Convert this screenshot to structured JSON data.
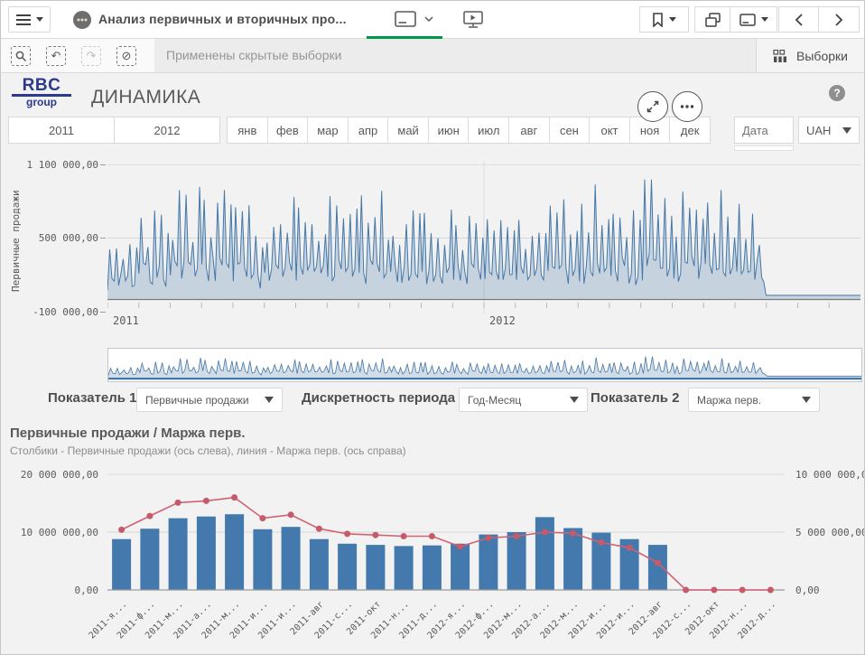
{
  "navbar": {
    "app_title": "Анализ первичных и вторичных про..."
  },
  "toolbar": {
    "status_text": "Применены скрытые выборки",
    "selections_label": "Выборки"
  },
  "header": {
    "logo_top": "RBC",
    "logo_bottom": "group",
    "title": "ДИНАМИКА",
    "help_glyph": "?"
  },
  "filters": {
    "years": [
      "2011",
      "2012"
    ],
    "months": [
      "янв",
      "фев",
      "мар",
      "апр",
      "май",
      "июн",
      "июл",
      "авг",
      "сен",
      "окт",
      "ноя",
      "дек"
    ],
    "date_label": "Дата",
    "currency": "UAH"
  },
  "controls": {
    "indicator1_label": "Показатель 1",
    "indicator1_value": "Первичные продажи",
    "period_label": "Дискретность периода",
    "period_value": "Год-Месяц",
    "indicator2_label": "Показатель 2",
    "indicator2_value": "Маржа перв."
  },
  "combo_header": {
    "title": "Первичные продажи / Маржа перв.",
    "subtitle": "Столбики - Первичные продажи (ось слева), линия - Маржа перв. (ось справа)"
  },
  "chart_data": [
    {
      "id": "primary-sales-daily",
      "type": "area",
      "ylabel": "Первичные продажи",
      "yticks": [
        "1 100 000,00",
        "500 000,00",
        "-100 000,00"
      ],
      "ylim": [
        -100000,
        1100000
      ],
      "xticks": [
        "2011",
        "2012"
      ],
      "x_months": 24,
      "grid": true,
      "note": "daily primary sales Jan 2011 - Dec 2012; activity stops near end of Sep 2012, flat near zero afterwards",
      "monthly_peaks": [
        480000,
        820000,
        930000,
        990000,
        830000,
        870000,
        820000,
        860000,
        900000,
        820000,
        860000,
        760000,
        780000,
        700000,
        880000,
        950000,
        1000000,
        1050000,
        980000,
        920000,
        860000,
        0,
        0,
        0
      ],
      "base_value": 130000,
      "flat_after_month": 20.9,
      "flat_value": 30000,
      "series_color": "#4577a7",
      "fill_color": "rgba(69,119,167,0.25)"
    },
    {
      "id": "navigator-mini",
      "type": "area",
      "role": "range navigator of primary-sales-daily (full range selected, blue slider line at bottom)",
      "slider_color": "#4477aa"
    },
    {
      "id": "combo-monthly",
      "type": "combo",
      "title": "Первичные продажи / Маржа перв.",
      "categories": [
        "2011-я...",
        "2011-ф...",
        "2011-м...",
        "2011-а...",
        "2011-м...",
        "2011-и...",
        "2011-и...",
        "2011-авг",
        "2011-с...",
        "2011-окт",
        "2011-н...",
        "2011-д...",
        "2012-я...",
        "2012-ф...",
        "2012-м...",
        "2012-а...",
        "2012-м...",
        "2012-и...",
        "2012-и...",
        "2012-авг",
        "2012-с...",
        "2012-окт",
        "2012-н...",
        "2012-д..."
      ],
      "left_axis": {
        "ticks": [
          "20 000 000,00",
          "10 000 000,00",
          "0,00"
        ],
        "max": 20000000
      },
      "right_axis": {
        "ticks": [
          "10 000 000,00",
          "5 000 000,00",
          "0,00"
        ],
        "max": 10000000
      },
      "series": [
        {
          "name": "Первичные продажи",
          "type": "bar",
          "axis": "left",
          "color": "#4379ad",
          "values": [
            8800000,
            10600000,
            12400000,
            12700000,
            13100000,
            10500000,
            10900000,
            8800000,
            8000000,
            7800000,
            7600000,
            7700000,
            8000000,
            9600000,
            10000000,
            12600000,
            10700000,
            9900000,
            8800000,
            7800000,
            0,
            0,
            0,
            0
          ]
        },
        {
          "name": "Маржа перв.",
          "type": "line",
          "axis": "right",
          "color": "#cf6272",
          "marker_color": "#c75a69",
          "values": [
            5200000,
            6400000,
            7550000,
            7700000,
            8000000,
            6200000,
            6500000,
            5300000,
            4850000,
            4750000,
            4650000,
            4650000,
            3750000,
            4500000,
            4650000,
            5000000,
            4900000,
            4100000,
            3650000,
            2350000,
            0,
            0,
            0,
            0
          ]
        }
      ]
    }
  ]
}
